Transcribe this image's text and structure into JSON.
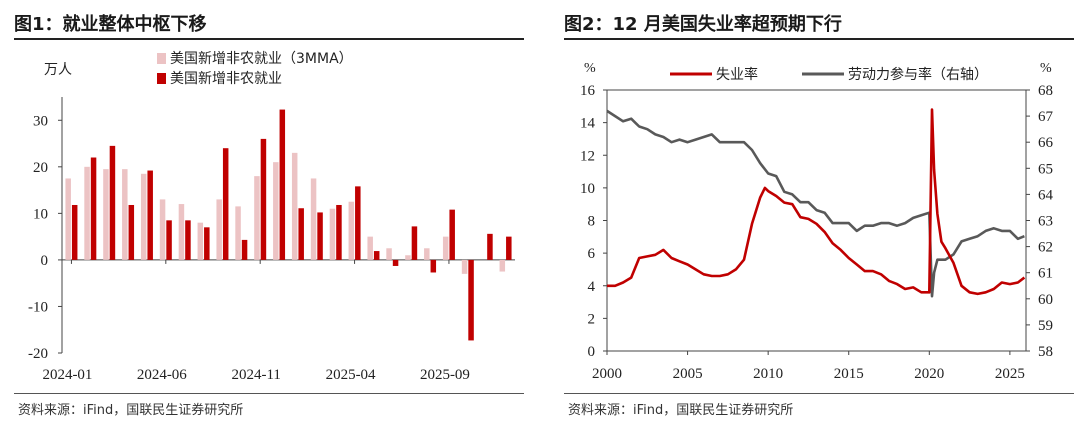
{
  "fig1": {
    "title": "图1：就业整体中枢下移",
    "unit": "万人",
    "source": "资料来源：iFind，国联民生证券研究所",
    "chart_data": {
      "type": "bar",
      "title": "就业整体中枢下移",
      "ylabel": "万人",
      "ylim": [
        -20,
        35
      ],
      "yticks": [
        -20,
        -10,
        0,
        10,
        20,
        30
      ],
      "xtick_labels": [
        "2024-01",
        "2024-06",
        "2024-11",
        "2025-04",
        "2025-09"
      ],
      "categories": [
        "2024-01",
        "2024-02",
        "2024-03",
        "2024-04",
        "2024-05",
        "2024-06",
        "2024-07",
        "2024-08",
        "2024-09",
        "2024-10",
        "2024-11",
        "2024-12",
        "2025-01",
        "2025-02",
        "2025-03",
        "2025-04",
        "2025-05",
        "2025-06",
        "2025-07",
        "2025-08",
        "2025-09",
        "2025-10",
        "2025-11",
        "2025-12"
      ],
      "series": [
        {
          "name": "美国新增非农就业（3MMA）",
          "color": "#ecc3c4",
          "values": [
            17.5,
            20.0,
            19.5,
            19.5,
            18.5,
            13.0,
            12.0,
            8.0,
            13.0,
            11.5,
            18.0,
            21.0,
            23.0,
            17.5,
            11.0,
            12.5,
            5.0,
            2.5,
            1.0,
            2.5,
            5.0,
            -3.0,
            null,
            -2.5
          ]
        },
        {
          "name": "美国新增非农就业",
          "color": "#c00000",
          "values": [
            11.8,
            22.0,
            24.5,
            11.8,
            19.2,
            8.5,
            8.5,
            7.0,
            24.0,
            4.3,
            26.0,
            32.3,
            11.1,
            10.2,
            11.8,
            15.8,
            1.9,
            -1.3,
            7.2,
            -2.7,
            10.8,
            -17.3,
            5.6,
            5.0
          ]
        }
      ]
    }
  },
  "fig2": {
    "title": "图2：12 月美国失业率超预期下行",
    "unit_left": "%",
    "unit_right": "%",
    "source": "资料来源：iFind，国联民生证券研究所",
    "chart_data": {
      "type": "line",
      "title": "12 月美国失业率超预期下行",
      "xlim": [
        2000,
        2026
      ],
      "xticks": [
        2000,
        2005,
        2010,
        2015,
        2020,
        2025
      ],
      "ylim_left": [
        0,
        16
      ],
      "yticks_left": [
        0,
        2,
        4,
        6,
        8,
        10,
        12,
        14,
        16
      ],
      "ylim_right": [
        58,
        68
      ],
      "yticks_right": [
        58,
        59,
        60,
        61,
        62,
        63,
        64,
        65,
        66,
        67,
        68
      ],
      "series": [
        {
          "name": "失业率",
          "axis": "left",
          "color": "#c00000",
          "x": [
            2000.0,
            2000.5,
            2001.0,
            2001.5,
            2002.0,
            2002.5,
            2003.0,
            2003.5,
            2004.0,
            2004.5,
            2005.0,
            2005.5,
            2006.0,
            2006.5,
            2007.0,
            2007.5,
            2008.0,
            2008.5,
            2009.0,
            2009.5,
            2009.8,
            2010.0,
            2010.5,
            2011.0,
            2011.5,
            2012.0,
            2012.5,
            2013.0,
            2013.5,
            2014.0,
            2014.5,
            2015.0,
            2015.5,
            2016.0,
            2016.5,
            2017.0,
            2017.5,
            2018.0,
            2018.5,
            2019.0,
            2019.5,
            2020.0,
            2020.17,
            2020.3,
            2020.5,
            2020.75,
            2021.0,
            2021.5,
            2022.0,
            2022.5,
            2023.0,
            2023.5,
            2024.0,
            2024.5,
            2025.0,
            2025.5,
            2025.9
          ],
          "y": [
            4.0,
            4.0,
            4.2,
            4.5,
            5.7,
            5.8,
            5.9,
            6.2,
            5.7,
            5.5,
            5.3,
            5.0,
            4.7,
            4.6,
            4.6,
            4.7,
            5.0,
            5.6,
            7.8,
            9.4,
            10.0,
            9.8,
            9.5,
            9.1,
            9.0,
            8.2,
            8.1,
            7.8,
            7.3,
            6.6,
            6.2,
            5.7,
            5.3,
            4.9,
            4.9,
            4.7,
            4.3,
            4.1,
            3.8,
            3.9,
            3.6,
            3.6,
            14.8,
            11.1,
            8.4,
            6.7,
            6.3,
            5.4,
            4.0,
            3.6,
            3.5,
            3.6,
            3.8,
            4.2,
            4.1,
            4.2,
            4.5
          ]
        },
        {
          "name": "劳动力参与率（右轴）",
          "axis": "right",
          "color": "#595959",
          "x": [
            2000.0,
            2000.5,
            2001.0,
            2001.5,
            2002.0,
            2002.5,
            2003.0,
            2003.5,
            2004.0,
            2004.5,
            2005.0,
            2005.5,
            2006.0,
            2006.5,
            2007.0,
            2007.5,
            2008.0,
            2008.5,
            2009.0,
            2009.5,
            2010.0,
            2010.5,
            2011.0,
            2011.5,
            2012.0,
            2012.5,
            2013.0,
            2013.5,
            2014.0,
            2014.5,
            2015.0,
            2015.5,
            2016.0,
            2016.5,
            2017.0,
            2017.5,
            2018.0,
            2018.5,
            2019.0,
            2019.5,
            2020.0,
            2020.17,
            2020.3,
            2020.5,
            2021.0,
            2021.5,
            2022.0,
            2022.5,
            2023.0,
            2023.5,
            2024.0,
            2024.5,
            2025.0,
            2025.5,
            2025.9
          ],
          "y": [
            67.2,
            67.0,
            66.8,
            66.9,
            66.6,
            66.5,
            66.3,
            66.2,
            66.0,
            66.1,
            66.0,
            66.1,
            66.2,
            66.3,
            66.0,
            66.0,
            66.0,
            66.0,
            65.7,
            65.2,
            64.8,
            64.7,
            64.1,
            64.0,
            63.7,
            63.7,
            63.4,
            63.3,
            62.9,
            62.9,
            62.9,
            62.6,
            62.8,
            62.8,
            62.9,
            62.9,
            62.8,
            62.9,
            63.1,
            63.2,
            63.3,
            60.1,
            61.0,
            61.5,
            61.5,
            61.7,
            62.2,
            62.3,
            62.4,
            62.6,
            62.7,
            62.6,
            62.6,
            62.3,
            62.4
          ]
        }
      ]
    }
  }
}
